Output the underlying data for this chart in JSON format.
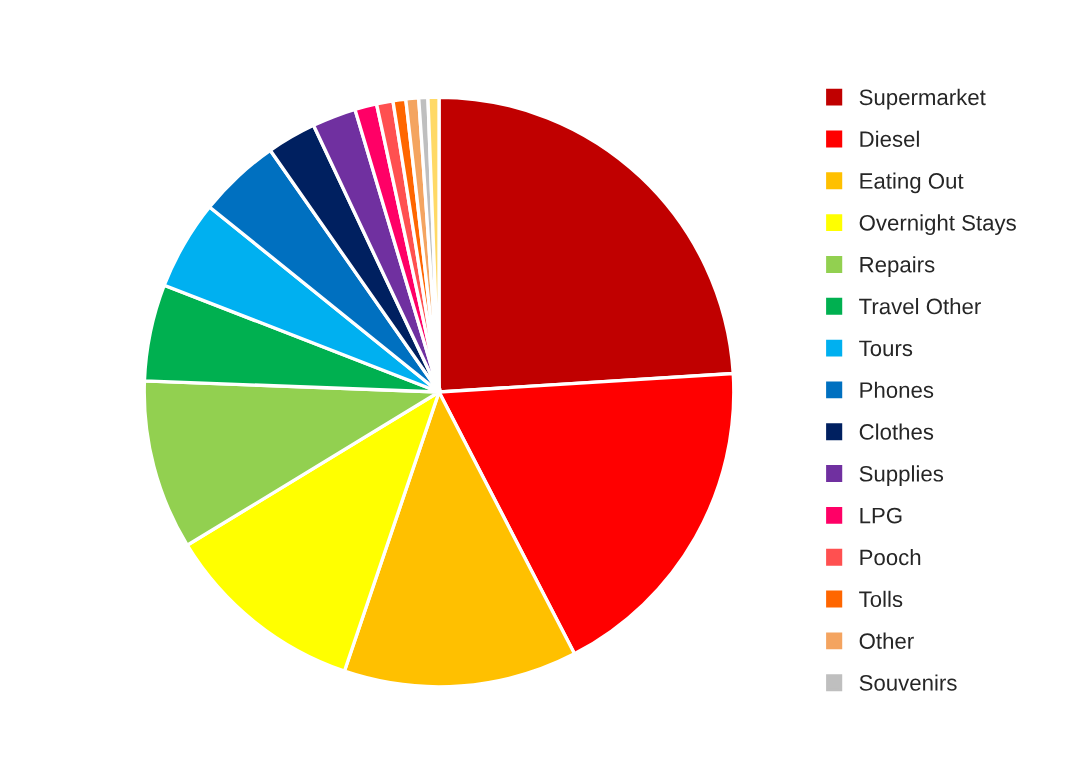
{
  "chart_data": {
    "type": "pie",
    "categories": [
      "Supermarket",
      "Diesel",
      "Eating Out",
      "Overnight Stays",
      "Repairs",
      "Travel Other",
      "Tours",
      "Phones",
      "Clothes",
      "Supplies",
      "LPG",
      "Pooch",
      "Tolls",
      "Other",
      "Souvenirs",
      null
    ],
    "values": [
      24.0,
      18.4,
      12.8,
      11.1,
      9.3,
      5.3,
      4.9,
      4.5,
      2.7,
      2.4,
      1.2,
      0.9,
      0.7,
      0.7,
      0.5,
      0.6
    ],
    "colors": [
      "#c00000",
      "#ff0000",
      "#ffc000",
      "#ffff00",
      "#92d050",
      "#00b050",
      "#00b0f0",
      "#0070c0",
      "#002060",
      "#7030a0",
      "#ff0066",
      "#ff5050",
      "#ff6600",
      "#f4a460",
      "#bfbfbf",
      "#ffd966"
    ],
    "legend": "right"
  }
}
